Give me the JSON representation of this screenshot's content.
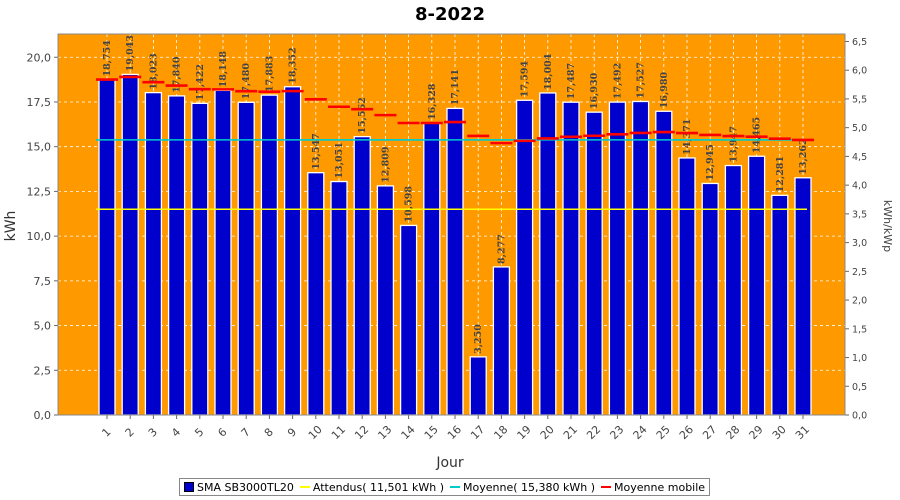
{
  "chart_data": {
    "type": "bar",
    "title": "8-2022",
    "xlabel": "Jour",
    "ylabel": "kWh",
    "ylabel_right": "kWh/kWp",
    "ylim": [
      0,
      21.3
    ],
    "y_ticks": [
      "0,0",
      "2,5",
      "5,0",
      "7,5",
      "10,0",
      "12,5",
      "15,0",
      "17,5",
      "20,0"
    ],
    "y2lim": [
      0,
      6.63
    ],
    "y2_ticks": [
      "0,0",
      "0,5",
      "1,0",
      "1,5",
      "2,0",
      "2,5",
      "3,0",
      "3,5",
      "4,0",
      "4,5",
      "5,0",
      "5,5",
      "6,0",
      "6,5"
    ],
    "categories": [
      "1",
      "2",
      "3",
      "4",
      "5",
      "6",
      "7",
      "8",
      "9",
      "10",
      "11",
      "12",
      "13",
      "14",
      "15",
      "16",
      "17",
      "18",
      "19",
      "20",
      "21",
      "22",
      "23",
      "24",
      "25",
      "26",
      "27",
      "28",
      "29",
      "30",
      "31"
    ],
    "series": [
      {
        "name": "SMA SB3000TL20",
        "values": [
          18.754,
          19.043,
          18.023,
          17.84,
          17.422,
          18.148,
          17.48,
          17.883,
          18.352,
          13.547,
          13.051,
          15.562,
          12.809,
          10.598,
          16.328,
          17.141,
          3.25,
          8.277,
          17.594,
          18.004,
          17.487,
          16.93,
          17.492,
          17.527,
          16.98,
          14.371,
          12.945,
          13.947,
          14.465,
          12.281,
          13.262
        ],
        "labels": [
          "18,754",
          "19,043",
          "18,023",
          "17,840",
          "17,422",
          "18,148",
          "17,480",
          "17,883",
          "18,352",
          "13,547",
          "13,051",
          "15,562",
          "12,809",
          "10,598",
          "16,328",
          "17,141",
          "3,250",
          "8,277",
          "17,594",
          "18,004",
          "17,487",
          "16,930",
          "17,492",
          "17,527",
          "16,980",
          "14,371",
          "12,945",
          "13,947",
          "14,465",
          "12,281",
          "13,262"
        ],
        "color": "#0000cc"
      },
      {
        "name": "Attendus( 11,501 kWh )",
        "value": 11.501,
        "color": "#ffff00"
      },
      {
        "name": "Moyenne( 15,380 kWh )",
        "value": 15.38,
        "color": "#00cccc"
      },
      {
        "name": "Moyenne mobile",
        "values": [
          18.754,
          18.899,
          18.607,
          18.415,
          18.216,
          18.204,
          18.101,
          18.074,
          18.107,
          17.651,
          17.233,
          17.094,
          16.765,
          16.325,
          16.325,
          16.375,
          15.603,
          15.2,
          15.325,
          15.459,
          15.555,
          15.612,
          15.694,
          15.768,
          15.816,
          15.76,
          15.656,
          15.594,
          15.557,
          15.447,
          15.38
        ],
        "color": "#ff0000"
      }
    ],
    "colors": {
      "plot_background": "#ff9900",
      "grid": "#ffffff"
    },
    "grid": true,
    "legend_position": "bottom"
  }
}
